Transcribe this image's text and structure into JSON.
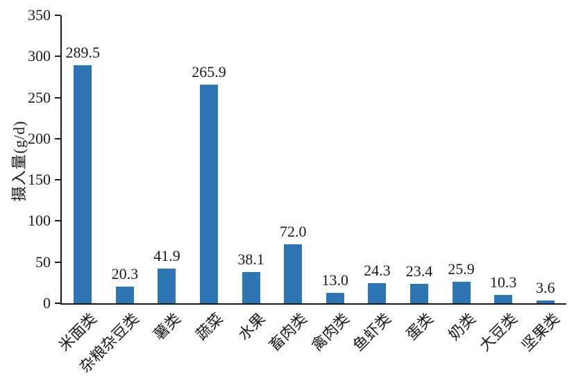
{
  "chart_data": {
    "type": "bar",
    "title": "",
    "xlabel": "",
    "ylabel": "摄入量(g/d)",
    "categories": [
      "米面类",
      "杂粮杂豆类",
      "薯类",
      "蔬菜",
      "水果",
      "畜肉类",
      "禽肉类",
      "鱼虾类",
      "蛋类",
      "奶类",
      "大豆类",
      "坚果类"
    ],
    "values": [
      289.5,
      20.3,
      41.9,
      265.9,
      38.1,
      72.0,
      13.0,
      24.3,
      23.4,
      25.9,
      10.3,
      3.6
    ],
    "value_labels": [
      "289.5",
      "20.3",
      "41.9",
      "265.9",
      "38.1",
      "72.0",
      "13.0",
      "24.3",
      "23.4",
      "25.9",
      "10.3",
      "3.6"
    ],
    "yticks": [
      0,
      50,
      100,
      150,
      200,
      250,
      300,
      350
    ],
    "ylim": [
      0,
      350
    ],
    "grid": false,
    "legend_position": "none",
    "bar_color": "#2E75B4",
    "axis_color": "#1a1a1a",
    "text_color": "#1a1a1a",
    "background_color": "#ffffff"
  }
}
